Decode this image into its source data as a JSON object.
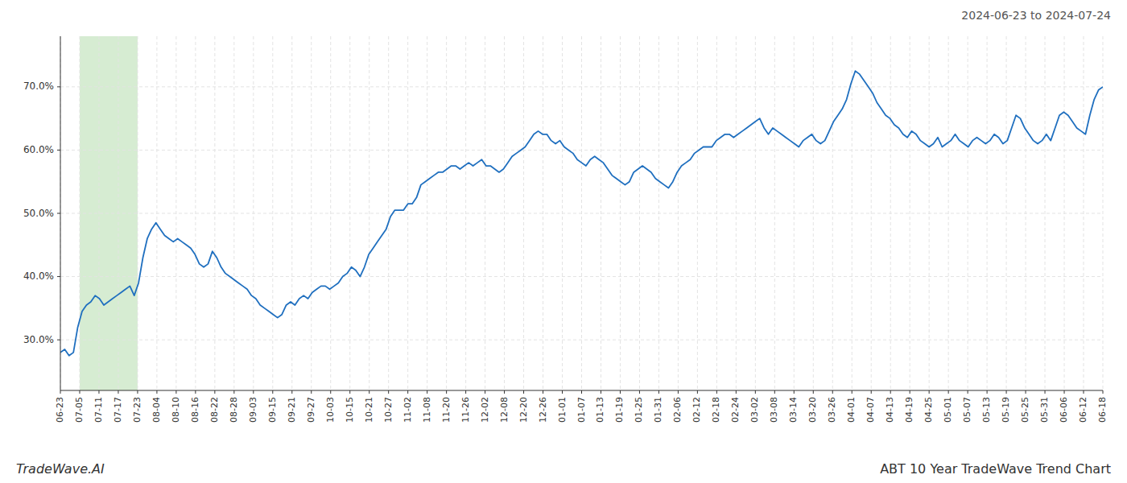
{
  "chart_data": {
    "type": "line",
    "title": "ABT 10 Year TradeWave Trend Chart",
    "subtitle": "2024-06-23 to 2024-07-24",
    "annotations": [
      "TradeWave.AI"
    ],
    "color": "#1f6fbf",
    "grid": true,
    "highlight": {
      "x": [
        4.444444444444445,
        17.77777777777778
      ],
      "color": "#d6ecd2"
    },
    "xlim": [
      0,
      240
    ],
    "xticks": [
      {
        "value": 0,
        "label": "06-23"
      },
      {
        "value": 4.444444444444445,
        "label": "07-05"
      },
      {
        "value": 8.88888888888889,
        "label": "07-11"
      },
      {
        "value": 13.333333333333334,
        "label": "07-17"
      },
      {
        "value": 17.77777777777778,
        "label": "07-23"
      },
      {
        "value": 22.22222222222222,
        "label": "08-04"
      },
      {
        "value": 26.666666666666668,
        "label": "08-10"
      },
      {
        "value": 31.11111111111111,
        "label": "08-16"
      },
      {
        "value": 35.55555555555556,
        "label": "08-22"
      },
      {
        "value": 40,
        "label": "08-28"
      },
      {
        "value": 44.44444444444444,
        "label": "09-03"
      },
      {
        "value": 48.88888888888889,
        "label": "09-15"
      },
      {
        "value": 53.333333333333336,
        "label": "09-21"
      },
      {
        "value": 57.77777777777778,
        "label": "09-27"
      },
      {
        "value": 62.22222222222222,
        "label": "10-03"
      },
      {
        "value": 66.66666666666667,
        "label": "10-15"
      },
      {
        "value": 71.11111111111111,
        "label": "10-21"
      },
      {
        "value": 75.55555555555556,
        "label": "10-27"
      },
      {
        "value": 80,
        "label": "11-02"
      },
      {
        "value": 84.44444444444444,
        "label": "11-08"
      },
      {
        "value": 88.88888888888889,
        "label": "11-20"
      },
      {
        "value": 93.33333333333333,
        "label": "11-26"
      },
      {
        "value": 97.77777777777777,
        "label": "12-02"
      },
      {
        "value": 102.22222222222223,
        "label": "12-08"
      },
      {
        "value": 106.66666666666667,
        "label": "12-20"
      },
      {
        "value": 111.11111111111111,
        "label": "12-26"
      },
      {
        "value": 115.55555555555556,
        "label": "01-01"
      },
      {
        "value": 120,
        "label": "01-07"
      },
      {
        "value": 124.44444444444444,
        "label": "01-13"
      },
      {
        "value": 128.88888888888889,
        "label": "01-19"
      },
      {
        "value": 133.33333333333334,
        "label": "01-25"
      },
      {
        "value": 137.77777777777777,
        "label": "01-31"
      },
      {
        "value": 142.22222222222223,
        "label": "02-06"
      },
      {
        "value": 146.66666666666666,
        "label": "02-12"
      },
      {
        "value": 151.11111111111111,
        "label": "02-18"
      },
      {
        "value": 155.55555555555554,
        "label": "02-24"
      },
      {
        "value": 160,
        "label": "03-02"
      },
      {
        "value": 164.44444444444446,
        "label": "03-08"
      },
      {
        "value": 168.88888888888889,
        "label": "03-14"
      },
      {
        "value": 173.33333333333334,
        "label": "03-20"
      },
      {
        "value": 177.77777777777777,
        "label": "03-26"
      },
      {
        "value": 182.22222222222223,
        "label": "04-01"
      },
      {
        "value": 186.66666666666666,
        "label": "04-07"
      },
      {
        "value": 191.11111111111111,
        "label": "04-13"
      },
      {
        "value": 195.55555555555554,
        "label": "04-19"
      },
      {
        "value": 200,
        "label": "04-25"
      },
      {
        "value": 204.44444444444446,
        "label": "05-01"
      },
      {
        "value": 208.88888888888889,
        "label": "05-07"
      },
      {
        "value": 213.33333333333334,
        "label": "05-13"
      },
      {
        "value": 217.77777777777777,
        "label": "05-19"
      },
      {
        "value": 222.22222222222223,
        "label": "05-25"
      },
      {
        "value": 226.66666666666666,
        "label": "05-31"
      },
      {
        "value": 231.11111111111111,
        "label": "06-06"
      },
      {
        "value": 235.55555555555554,
        "label": "06-12"
      },
      {
        "value": 240,
        "label": "06-18"
      }
    ],
    "ylim": [
      22,
      78
    ],
    "yticks": [
      {
        "value": 30.0,
        "label": "30.0%"
      },
      {
        "value": 40.0,
        "label": "40.0%"
      },
      {
        "value": 50.0,
        "label": "50.0%"
      },
      {
        "value": 60.0,
        "label": "60.0%"
      },
      {
        "value": 70.0,
        "label": "70.0%"
      }
    ],
    "values": [
      28.0,
      28.5,
      27.5,
      28.0,
      32.0,
      34.5,
      35.5,
      36.0,
      37.0,
      36.5,
      35.5,
      36.0,
      36.5,
      37.0,
      37.5,
      38.0,
      38.5,
      37.0,
      39.0,
      43.0,
      46.0,
      47.5,
      48.5,
      47.5,
      46.5,
      46.0,
      45.5,
      46.0,
      45.5,
      45.0,
      44.5,
      43.5,
      42.0,
      41.5,
      42.0,
      44.0,
      43.0,
      41.5,
      40.5,
      40.0,
      39.5,
      39.0,
      38.5,
      38.0,
      37.0,
      36.5,
      35.5,
      35.0,
      34.5,
      34.0,
      33.5,
      34.0,
      35.5,
      36.0,
      35.5,
      36.5,
      37.0,
      36.5,
      37.5,
      38.0,
      38.5,
      38.5,
      38.0,
      38.5,
      39.0,
      40.0,
      40.5,
      41.5,
      41.0,
      40.0,
      41.5,
      43.5,
      44.5,
      45.5,
      46.5,
      47.5,
      49.5,
      50.5,
      50.5,
      50.5,
      51.5,
      51.5,
      52.5,
      54.5,
      55.0,
      55.5,
      56.0,
      56.5,
      56.5,
      57.0,
      57.5,
      57.5,
      57.0,
      57.5,
      58.0,
      57.5,
      58.0,
      58.5,
      57.5,
      57.5,
      57.0,
      56.5,
      57.0,
      58.0,
      59.0,
      59.5,
      60.0,
      60.5,
      61.5,
      62.5,
      63.0,
      62.5,
      62.5,
      61.5,
      61.0,
      61.5,
      60.5,
      60.0,
      59.5,
      58.5,
      58.0,
      57.5,
      58.5,
      59.0,
      58.5,
      58.0,
      57.0,
      56.0,
      55.5,
      55.0,
      54.5,
      55.0,
      56.5,
      57.0,
      57.5,
      57.0,
      56.5,
      55.5,
      55.0,
      54.5,
      54.0,
      55.0,
      56.5,
      57.5,
      58.0,
      58.5,
      59.5,
      60.0,
      60.5,
      60.5,
      60.5,
      61.5,
      62.0,
      62.5,
      62.5,
      62.0,
      62.5,
      63.0,
      63.5,
      64.0,
      64.5,
      65.0,
      63.5,
      62.5,
      63.5,
      63.0,
      62.5,
      62.0,
      61.5,
      61.0,
      60.5,
      61.5,
      62.0,
      62.5,
      61.5,
      61.0,
      61.5,
      63.0,
      64.5,
      65.5,
      66.5,
      68.0,
      70.5,
      72.5,
      72.0,
      71.0,
      70.0,
      69.0,
      67.5,
      66.5,
      65.5,
      65.0,
      64.0,
      63.5,
      62.5,
      62.0,
      63.0,
      62.5,
      61.5,
      61.0,
      60.5,
      61.0,
      62.0,
      60.5,
      61.0,
      61.5,
      62.5,
      61.5,
      61.0,
      60.5,
      61.5,
      62.0,
      61.5,
      61.0,
      61.5,
      62.5,
      62.0,
      61.0,
      61.5,
      63.5,
      65.5,
      65.0,
      63.5,
      62.5,
      61.5,
      61.0,
      61.5,
      62.5,
      61.5,
      63.5,
      65.5,
      66.0,
      65.5,
      64.5,
      63.5,
      63.0,
      62.5,
      65.5,
      68.0,
      69.5,
      70.0
    ]
  }
}
